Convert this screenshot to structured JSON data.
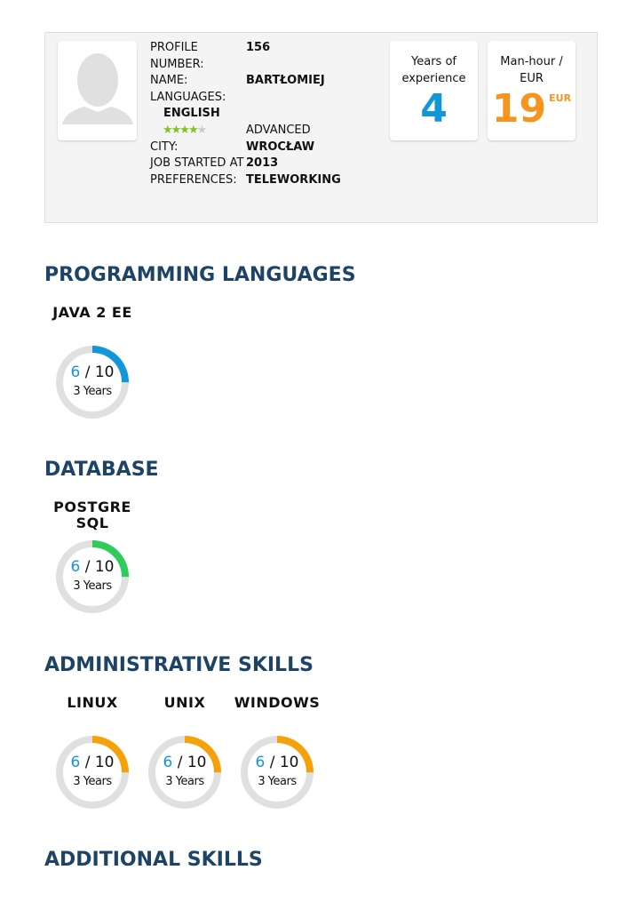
{
  "profile": {
    "fields": [
      {
        "label": "PROFILE NUMBER:",
        "value": "156"
      },
      {
        "label": "NAME:",
        "value": "BARTŁOMIEJ"
      },
      {
        "label": "LANGUAGES:",
        "value": ""
      }
    ],
    "language": {
      "name": "ENGLISH",
      "stars": 4,
      "max_stars": 5,
      "level": "ADVANCED"
    },
    "fields2": [
      {
        "label": "CITY:",
        "value": "WROCŁAW"
      },
      {
        "label": "JOB STARTED AT",
        "value": "2013"
      },
      {
        "label": "PREFERENCES:",
        "value": "TELEWORKING"
      }
    ],
    "experience": {
      "label": "Years of experience",
      "value": "4"
    },
    "rate": {
      "label": "Man-hour / EUR",
      "value": "19",
      "currency": "EUR"
    }
  },
  "colors": {
    "heading": "#1d4468",
    "blue": "#1296db",
    "orange": "#f7941d",
    "green": "#2ecc5a",
    "amber": "#f5a20a"
  },
  "sections": [
    {
      "title": "PROGRAMMING LANGUAGES",
      "color": "#1296db",
      "skills": [
        {
          "name": "JAVA 2 EE",
          "score": "6",
          "max": "/ 10",
          "years": "3 Years",
          "ring_fill": 0.25
        }
      ]
    },
    {
      "title": "DATABASE",
      "color": "#2ecc5a",
      "skills": [
        {
          "name": "POSTGRE SQL",
          "score": "6",
          "max": "/ 10",
          "years": "3 Years",
          "ring_fill": 0.25
        }
      ]
    },
    {
      "title": "ADMINISTRATIVE SKILLS",
      "color": "#f5a20a",
      "skills": [
        {
          "name": "LINUX",
          "score": "6",
          "max": "/ 10",
          "years": "3 Years",
          "ring_fill": 0.25
        },
        {
          "name": "UNIX",
          "score": "6",
          "max": "/ 10",
          "years": "3 Years",
          "ring_fill": 0.25
        },
        {
          "name": "WINDOWS",
          "score": "6",
          "max": "/ 10",
          "years": "3 Years",
          "ring_fill": 0.25
        }
      ]
    },
    {
      "title": "ADDITIONAL SKILLS",
      "skills": []
    }
  ]
}
